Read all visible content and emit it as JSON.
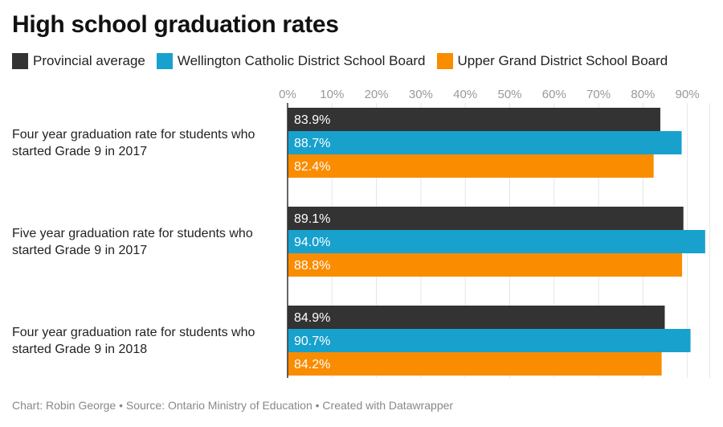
{
  "title": "High school graduation rates",
  "footer": "Chart: Robin George • Source: Ontario Ministry of Education • Created with Datawrapper",
  "chart_data": {
    "type": "bar",
    "orientation": "horizontal",
    "title": "High school graduation rates",
    "categories": [
      "Four year graduation rate for students who started Grade 9 in 2017",
      "Five year graduation rate for students who started Grade 9 in 2017",
      "Four year graduation rate for students who started Grade 9 in 2018"
    ],
    "series": [
      {
        "name": "Provincial average",
        "color": "#333333",
        "values": [
          83.9,
          89.1,
          84.9
        ],
        "labels": [
          "83.9%",
          "89.1%",
          "84.9%"
        ]
      },
      {
        "name": "Wellington Catholic District School Board",
        "color": "#18a1cd",
        "values": [
          88.7,
          94.0,
          90.7
        ],
        "labels": [
          "88.7%",
          "94.0%",
          "90.7%"
        ]
      },
      {
        "name": "Upper Grand District School Board",
        "color": "#fa8c00",
        "values": [
          82.4,
          88.8,
          84.2
        ],
        "labels": [
          "82.4%",
          "88.8%",
          "84.2%"
        ]
      }
    ],
    "ticks": [
      "0%",
      "10%",
      "20%",
      "30%",
      "40%",
      "50%",
      "60%",
      "70%",
      "80%",
      "90%"
    ],
    "xlim": [
      0,
      95
    ],
    "grid": true,
    "legend_position": "top"
  }
}
